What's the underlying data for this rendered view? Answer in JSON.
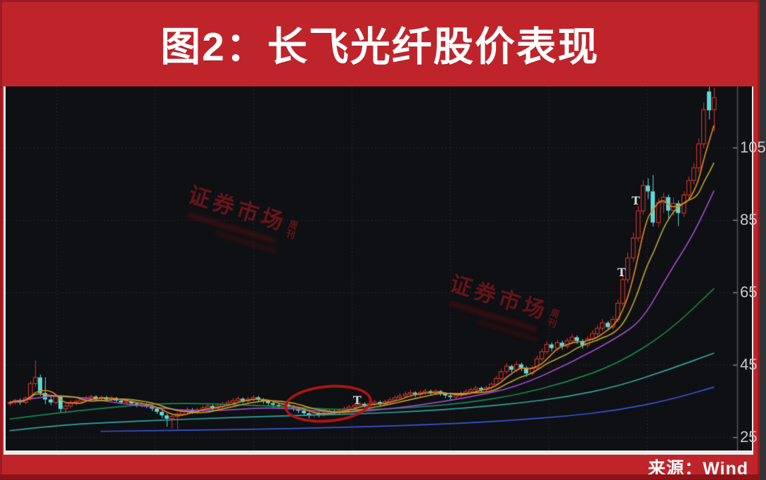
{
  "title": "图2：长飞光纤股价表现",
  "source_label": "来源：Wind",
  "watermark": {
    "main": "证券市场",
    "sub": "周刊"
  },
  "colors": {
    "frame_red": "#c0242b",
    "frame_dark_red": "#8a1519",
    "panel_border": "#eceae6",
    "chart_bg": "#0e1013",
    "grid": "#2c2f34",
    "axis": "#55585d",
    "axis_tick": "#84878c",
    "tick_text": "#c6c9cc",
    "candle_up": "#d23530",
    "candle_down": "#5fd8d4",
    "ma5": "#e2861f",
    "ma10": "#b9a431",
    "ma20": "#a448c8",
    "ma30": "#168a52",
    "ma60": "#2fa7a7",
    "ma120": "#3b55d8",
    "watermark": "#6b151b",
    "ellipse": "#b51414",
    "marker": "#d4d7da"
  },
  "chart_data": {
    "type": "candlestick",
    "title": "图2：长飞光纤股价表现",
    "source": "Wind",
    "y_axis": {
      "ticks": [
        105,
        85,
        65,
        45,
        25
      ],
      "labels": [
        "105",
        "85",
        "65",
        "45",
        "25"
      ],
      "ylim": [
        20.5,
        122
      ]
    },
    "grid": {
      "horizontal_prices": [
        105,
        85,
        65,
        45,
        25
      ],
      "vertical_x": [
        80,
        220,
        360,
        500,
        640,
        780,
        920
      ],
      "style": "dotted"
    },
    "candles": [
      [
        34.2,
        35.0,
        33.5,
        34.6
      ],
      [
        34.6,
        35.6,
        34.0,
        35.2
      ],
      [
        35.2,
        35.7,
        33.9,
        34.6
      ],
      [
        34.6,
        36.3,
        34.1,
        35.8
      ],
      [
        35.8,
        40.5,
        35.2,
        39.8
      ],
      [
        39.8,
        46.2,
        38.8,
        41.5
      ],
      [
        41.5,
        42.3,
        36.4,
        37.2
      ],
      [
        37.2,
        41.5,
        34.1,
        35.4
      ],
      [
        35.4,
        36.2,
        33.8,
        34.6
      ],
      [
        34.6,
        36.8,
        34.0,
        36.2
      ],
      [
        36.2,
        36.6,
        31.8,
        32.8
      ],
      [
        32.8,
        34.4,
        31.5,
        33.6
      ],
      [
        33.6,
        35.2,
        33.0,
        34.6
      ],
      [
        34.6,
        35.4,
        33.8,
        34.9
      ],
      [
        34.9,
        36.0,
        34.3,
        35.5
      ],
      [
        35.5,
        36.4,
        34.8,
        35.9
      ],
      [
        35.9,
        36.7,
        35.2,
        36.2
      ],
      [
        36.2,
        36.6,
        35.0,
        35.6
      ],
      [
        35.6,
        36.5,
        35.0,
        36.0
      ],
      [
        36.0,
        36.4,
        34.9,
        35.4
      ],
      [
        35.4,
        36.3,
        34.8,
        35.8
      ],
      [
        35.8,
        36.1,
        34.6,
        35.1
      ],
      [
        35.1,
        35.5,
        34.1,
        34.6
      ],
      [
        34.6,
        35.4,
        34.0,
        34.9
      ],
      [
        34.9,
        35.2,
        33.8,
        34.3
      ],
      [
        34.3,
        34.7,
        33.3,
        33.8
      ],
      [
        33.8,
        34.6,
        33.2,
        34.1
      ],
      [
        34.1,
        34.4,
        33.0,
        33.5
      ],
      [
        33.5,
        33.9,
        32.2,
        32.9
      ],
      [
        32.9,
        33.2,
        31.4,
        32.0
      ],
      [
        32.0,
        32.4,
        30.2,
        31.0
      ],
      [
        31.0,
        31.5,
        27.9,
        30.1
      ],
      [
        30.1,
        31.2,
        27.4,
        30.7
      ],
      [
        30.7,
        31.9,
        27.2,
        31.4
      ],
      [
        31.4,
        32.6,
        30.9,
        32.1
      ],
      [
        32.1,
        33.2,
        31.5,
        32.6
      ],
      [
        32.6,
        33.0,
        31.4,
        32.0
      ],
      [
        32.0,
        33.1,
        31.5,
        32.6
      ],
      [
        32.6,
        33.7,
        32.0,
        33.1
      ],
      [
        33.1,
        34.2,
        32.5,
        33.6
      ],
      [
        33.6,
        34.0,
        32.4,
        33.0
      ],
      [
        33.0,
        34.1,
        32.5,
        33.6
      ],
      [
        33.6,
        34.7,
        33.0,
        34.1
      ],
      [
        34.1,
        35.2,
        33.5,
        34.6
      ],
      [
        34.6,
        35.8,
        34.0,
        35.1
      ],
      [
        35.1,
        36.3,
        34.5,
        35.6
      ],
      [
        35.6,
        36.0,
        34.4,
        35.0
      ],
      [
        35.0,
        36.1,
        34.4,
        35.5
      ],
      [
        35.5,
        36.6,
        34.9,
        36.0
      ],
      [
        36.0,
        36.4,
        34.8,
        35.4
      ],
      [
        35.4,
        35.8,
        34.2,
        34.9
      ],
      [
        34.9,
        35.3,
        33.8,
        34.4
      ],
      [
        34.4,
        34.8,
        33.2,
        33.9
      ],
      [
        33.9,
        34.4,
        32.8,
        33.5
      ],
      [
        33.5,
        34.5,
        32.9,
        34.0
      ],
      [
        34.0,
        34.4,
        32.8,
        33.4
      ],
      [
        33.4,
        33.8,
        32.2,
        32.9
      ],
      [
        32.9,
        33.3,
        31.6,
        32.3
      ],
      [
        32.3,
        32.6,
        30.8,
        31.6
      ],
      [
        31.6,
        32.0,
        30.2,
        31.1
      ],
      [
        31.1,
        32.2,
        30.6,
        31.6
      ],
      [
        31.6,
        32.0,
        30.5,
        31.2
      ],
      [
        31.2,
        32.3,
        30.7,
        31.7
      ],
      [
        31.7,
        32.8,
        31.1,
        32.2
      ],
      [
        32.2,
        32.6,
        31.2,
        31.8
      ],
      [
        31.8,
        32.9,
        31.2,
        32.3
      ],
      [
        32.3,
        33.4,
        31.7,
        32.8
      ],
      [
        32.8,
        33.9,
        32.2,
        33.3
      ],
      [
        33.3,
        34.4,
        32.7,
        33.8
      ],
      [
        33.8,
        34.9,
        33.2,
        34.2
      ],
      [
        34.2,
        34.6,
        33.1,
        33.7
      ],
      [
        33.7,
        34.8,
        33.1,
        34.2
      ],
      [
        34.2,
        35.3,
        33.6,
        34.7
      ],
      [
        34.7,
        35.1,
        33.6,
        34.2
      ],
      [
        34.2,
        35.4,
        33.7,
        34.8
      ],
      [
        34.8,
        36.0,
        34.2,
        35.3
      ],
      [
        35.3,
        36.5,
        34.8,
        35.9
      ],
      [
        35.9,
        37.1,
        35.3,
        36.4
      ],
      [
        36.4,
        37.6,
        35.8,
        36.9
      ],
      [
        36.9,
        38.0,
        36.2,
        37.3
      ],
      [
        37.3,
        37.7,
        36.1,
        36.8
      ],
      [
        36.8,
        37.9,
        36.2,
        37.3
      ],
      [
        37.3,
        38.4,
        36.7,
        37.7
      ],
      [
        37.7,
        38.1,
        36.5,
        37.2
      ],
      [
        37.2,
        38.3,
        36.6,
        37.7
      ],
      [
        37.7,
        38.0,
        36.4,
        37.1
      ],
      [
        37.1,
        37.4,
        35.8,
        36.5
      ],
      [
        36.5,
        36.9,
        35.4,
        36.1
      ],
      [
        36.1,
        37.2,
        35.5,
        36.6
      ],
      [
        36.6,
        37.7,
        36.0,
        37.1
      ],
      [
        37.1,
        38.2,
        36.5,
        37.6
      ],
      [
        37.6,
        38.7,
        37.0,
        38.1
      ],
      [
        38.1,
        39.2,
        37.5,
        38.6
      ],
      [
        38.6,
        39.0,
        37.4,
        38.1
      ],
      [
        38.1,
        39.3,
        37.6,
        38.7
      ],
      [
        38.7,
        40.2,
        38.1,
        39.6
      ],
      [
        39.6,
        41.9,
        39.0,
        41.2
      ],
      [
        41.2,
        43.9,
        40.6,
        43.1
      ],
      [
        43.1,
        45.4,
        42.5,
        44.6
      ],
      [
        44.6,
        45.0,
        42.8,
        43.6
      ],
      [
        43.6,
        45.9,
        43.0,
        45.1
      ],
      [
        45.1,
        45.6,
        43.2,
        44.1
      ],
      [
        44.1,
        44.6,
        41.7,
        42.6
      ],
      [
        42.6,
        44.8,
        42.0,
        44.1
      ],
      [
        44.1,
        47.4,
        43.6,
        46.6
      ],
      [
        46.6,
        49.5,
        46.0,
        48.6
      ],
      [
        48.6,
        51.5,
        48.0,
        50.6
      ],
      [
        50.6,
        51.2,
        48.7,
        49.6
      ],
      [
        49.6,
        52.0,
        48.9,
        51.1
      ],
      [
        51.1,
        51.7,
        49.2,
        50.1
      ],
      [
        50.1,
        52.4,
        49.4,
        51.6
      ],
      [
        51.6,
        53.5,
        50.8,
        52.6
      ],
      [
        52.6,
        53.1,
        50.7,
        51.6
      ],
      [
        51.6,
        52.1,
        49.5,
        50.4
      ],
      [
        50.4,
        52.9,
        49.7,
        52.1
      ],
      [
        52.1,
        54.5,
        51.4,
        53.6
      ],
      [
        53.6,
        56.0,
        52.9,
        55.1
      ],
      [
        55.1,
        57.6,
        54.4,
        56.6
      ],
      [
        56.6,
        57.1,
        54.5,
        55.4
      ],
      [
        55.4,
        58.4,
        54.7,
        57.5
      ],
      [
        57.5,
        63.0,
        56.8,
        62.0
      ],
      [
        62.0,
        70.0,
        61.2,
        68.5
      ],
      [
        68.5,
        76.0,
        67.6,
        74.5
      ],
      [
        74.5,
        81.5,
        73.4,
        80.0
      ],
      [
        80.0,
        89.0,
        78.9,
        87.5
      ],
      [
        87.5,
        96.0,
        86.4,
        94.5
      ],
      [
        94.5,
        96.5,
        90.8,
        92.9
      ],
      [
        92.9,
        97.4,
        83.2,
        84.3
      ],
      [
        84.3,
        91.0,
        83.0,
        89.8
      ],
      [
        89.8,
        92.5,
        86.9,
        91.3
      ],
      [
        91.3,
        92.0,
        85.4,
        87.6
      ],
      [
        87.6,
        91.2,
        86.2,
        89.6
      ],
      [
        89.6,
        90.4,
        83.3,
        86.9
      ],
      [
        86.9,
        93.0,
        85.8,
        91.9
      ],
      [
        91.9,
        97.0,
        90.6,
        95.9
      ],
      [
        95.9,
        100.8,
        94.8,
        99.4
      ],
      [
        99.4,
        107.5,
        98.3,
        106.0
      ],
      [
        106.0,
        117.5,
        104.9,
        115.5
      ],
      [
        120.5,
        121.8,
        112.8,
        115.3
      ],
      [
        115.5,
        121.5,
        109.5,
        118.8
      ]
    ],
    "ma_computed": [
      {
        "name": "MA5",
        "period": 5,
        "color_key": "ma5"
      },
      {
        "name": "MA10",
        "period": 10,
        "color_key": "ma10"
      }
    ],
    "ma_polylines": [
      {
        "name": "MA20",
        "color_key": "ma20",
        "points": [
          [
            0,
            34.5
          ],
          [
            8,
            36.8
          ],
          [
            15,
            35.8
          ],
          [
            22,
            34.3
          ],
          [
            30,
            33.0
          ],
          [
            36,
            32.2
          ],
          [
            42,
            32.4
          ],
          [
            50,
            33.1
          ],
          [
            56,
            32.9
          ],
          [
            62,
            32.0
          ],
          [
            68,
            31.9
          ],
          [
            74,
            32.7
          ],
          [
            80,
            33.7
          ],
          [
            90,
            35.8
          ],
          [
            100,
            38.8
          ],
          [
            110,
            45.0
          ],
          [
            120,
            52.5
          ],
          [
            125,
            57.5
          ],
          [
            130,
            70.0
          ],
          [
            135,
            81.0
          ],
          [
            139,
            93.0
          ]
        ]
      },
      {
        "name": "MA30",
        "color_key": "ma30",
        "points": [
          [
            0,
            30.0
          ],
          [
            10,
            31.8
          ],
          [
            20,
            33.2
          ],
          [
            27,
            34.1
          ],
          [
            35,
            34.4
          ],
          [
            45,
            34.0
          ],
          [
            55,
            33.3
          ],
          [
            62,
            32.8
          ],
          [
            70,
            32.5
          ],
          [
            80,
            33.2
          ],
          [
            90,
            34.4
          ],
          [
            100,
            36.6
          ],
          [
            110,
            40.2
          ],
          [
            120,
            45.2
          ],
          [
            130,
            54.0
          ],
          [
            139,
            66.0
          ]
        ]
      },
      {
        "name": "MA60",
        "color_key": "ma60",
        "points": [
          [
            0,
            26.8
          ],
          [
            10,
            28.3
          ],
          [
            20,
            29.1
          ],
          [
            30,
            29.7
          ],
          [
            40,
            30.2
          ],
          [
            50,
            30.7
          ],
          [
            60,
            31.1
          ],
          [
            70,
            31.5
          ],
          [
            80,
            32.1
          ],
          [
            90,
            33.0
          ],
          [
            100,
            34.3
          ],
          [
            110,
            36.1
          ],
          [
            120,
            39.0
          ],
          [
            130,
            43.6
          ],
          [
            139,
            48.2
          ]
        ]
      },
      {
        "name": "MA120",
        "color_key": "ma120",
        "points": [
          [
            18,
            26.6
          ],
          [
            30,
            26.8
          ],
          [
            40,
            27.0
          ],
          [
            50,
            27.2
          ],
          [
            60,
            27.5
          ],
          [
            70,
            27.9
          ],
          [
            80,
            28.3
          ],
          [
            90,
            28.9
          ],
          [
            100,
            29.7
          ],
          [
            110,
            30.8
          ],
          [
            120,
            32.4
          ],
          [
            130,
            35.2
          ],
          [
            139,
            38.8
          ]
        ]
      }
    ],
    "annotations": {
      "ellipse": {
        "center_bar": 62.9,
        "center_price": 34.3,
        "rx_bars": 8.7,
        "ry_price": 5.1,
        "rotation_deg": -5
      },
      "t_markers": [
        {
          "label": "T",
          "bar": 68.6,
          "price": 35.0
        },
        {
          "label": "T",
          "bar": 120.8,
          "price": 70.2
        },
        {
          "label": "T",
          "bar": 123.6,
          "price": 90.0
        }
      ]
    }
  }
}
